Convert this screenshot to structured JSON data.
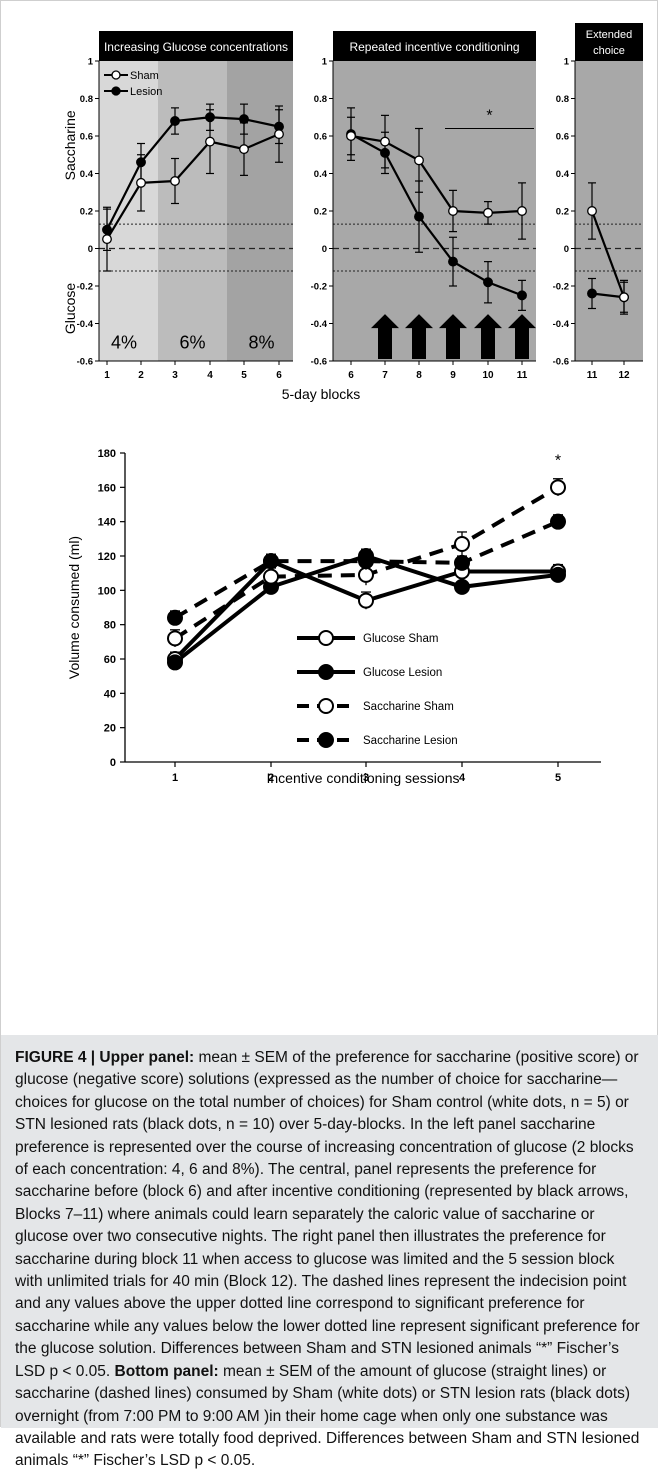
{
  "chart_data": [
    {
      "type": "line",
      "panels": [
        {
          "title": "Increasing Glucose concentrations",
          "x": [
            1,
            2,
            3,
            4,
            5,
            6
          ],
          "bands": [
            {
              "from": 1,
              "to": 2,
              "label": "4%"
            },
            {
              "from": 3,
              "to": 4,
              "label": "6%"
            },
            {
              "from": 5,
              "to": 6,
              "label": "8%"
            }
          ],
          "series": [
            {
              "name": "Sham",
              "marker": "white",
              "values": [
                0.05,
                0.35,
                0.36,
                0.57,
                0.53,
                0.61
              ],
              "sem": [
                0.17,
                0.15,
                0.12,
                0.17,
                0.14,
                0.15
              ]
            },
            {
              "name": "Lesion",
              "marker": "black",
              "values": [
                0.1,
                0.46,
                0.68,
                0.7,
                0.69,
                0.65
              ],
              "sem": [
                0.11,
                0.1,
                0.07,
                0.07,
                0.08,
                0.09
              ]
            }
          ]
        },
        {
          "title": "Repeated incentive conditioning",
          "x": [
            6,
            7,
            8,
            9,
            10,
            11
          ],
          "significance": "*",
          "arrows_at": [
            7,
            8,
            9,
            10,
            11
          ],
          "series": [
            {
              "name": "Sham",
              "marker": "white",
              "values": [
                0.6,
                0.57,
                0.47,
                0.2,
                0.19,
                0.2
              ],
              "sem": [
                0.1,
                0.14,
                0.17,
                0.11,
                0.06,
                0.15
              ]
            },
            {
              "name": "Lesion",
              "marker": "black",
              "values": [
                0.61,
                0.51,
                0.17,
                -0.07,
                -0.18,
                -0.25
              ],
              "sem": [
                0.14,
                0.11,
                0.19,
                0.13,
                0.11,
                0.08
              ]
            }
          ]
        },
        {
          "title": "Extended choice",
          "x": [
            11,
            12
          ],
          "series": [
            {
              "name": "Sham",
              "marker": "white",
              "values": [
                0.2,
                -0.26
              ],
              "sem": [
                0.15,
                0.08
              ]
            },
            {
              "name": "Lesion",
              "marker": "black",
              "values": [
                -0.24,
                -0.26
              ],
              "sem": [
                0.08,
                0.09
              ]
            }
          ]
        }
      ],
      "ylim": [
        -0.6,
        1
      ],
      "yticks": [
        "1",
        "0.8",
        "0.6",
        "0.4",
        "0.2",
        "0",
        "-0.2",
        "-0.4",
        "-0.6"
      ],
      "y_label_top": "Saccharine",
      "y_label_bottom": "Glucose",
      "xlabel": "5-day blocks",
      "reference_lines": {
        "indecision": 0,
        "upper_dotted": 0.13,
        "lower_dotted": -0.12
      },
      "legend": [
        "Sham",
        "Lesion"
      ]
    },
    {
      "type": "line",
      "categories": [
        "1",
        "2",
        "3",
        "4",
        "5"
      ],
      "ylabel": "Volume consumed (ml)",
      "xlabel": "Incentive conditioning sessions",
      "ylim": [
        0,
        180
      ],
      "yticks": [
        "0",
        "20",
        "40",
        "60",
        "80",
        "100",
        "120",
        "140",
        "160",
        "180"
      ],
      "significance": "*",
      "series": [
        {
          "name": "Glucose Sham",
          "line": "solid",
          "marker": "white",
          "values": [
            60,
            117,
            94,
            111,
            111
          ],
          "sem": [
            4,
            4,
            5,
            4,
            4
          ]
        },
        {
          "name": "Glucose Lesion",
          "line": "solid",
          "marker": "black",
          "values": [
            58,
            102,
            120,
            102,
            109
          ],
          "sem": [
            3,
            4,
            4,
            3,
            3
          ]
        },
        {
          "name": "Saccharine Sham",
          "line": "dashed",
          "marker": "white",
          "values": [
            72,
            108,
            109,
            127,
            160
          ],
          "sem": [
            5,
            5,
            6,
            7,
            5
          ]
        },
        {
          "name": "Saccharine Lesion",
          "line": "dashed",
          "marker": "black",
          "values": [
            84,
            117,
            117,
            116,
            140
          ],
          "sem": [
            4,
            4,
            5,
            4,
            4
          ]
        }
      ]
    }
  ],
  "caption": {
    "label": "FIGURE 4 | Upper panel:",
    "upper_text": " mean ± SEM of the preference for saccharine (positive score) or glucose (negative score) solutions (expressed as the number of choice for saccharine—choices for glucose on the total number of choices) for Sham control (white dots, n = 5) or STN lesioned rats (black dots, n = 10) over 5-day-blocks. In the left panel saccharine preference is represented over the course of increasing concentration of glucose (2 blocks of each concentration: 4, 6 and 8%). The central, panel represents the preference for saccharine before (block 6) and after incentive conditioning (represented by black arrows, Blocks 7–11) where animals could learn separately the caloric value of saccharine or glucose over two consecutive nights. The right panel then illustrates the preference for saccharine during block 11 when access to glucose was limited and the 5 session block with unlimited trials for 40 min (Block 12). The dashed lines represent the indecision point and any values above the upper dotted line correspond to significant preference for saccharine while any values below the lower dotted line represent significant preference for the glucose solution. Differences between Sham and STN lesioned animals “*” Fischer’s LSD p < 0.05.",
    "bottom_label": "Bottom panel:",
    "bottom_text": " mean ± SEM of the amount of glucose (straight lines) or saccharine (dashed lines) consumed by Sham (white dots) or STN lesion rats (black dots) overnight (from 7:00 PM to 9:00 AM )in their home cage when only one substance was available and rats were totally food deprived. Differences between Sham and STN lesioned animals “*” Fischer’s LSD p < 0.05."
  },
  "colors": {
    "panel_band_1": "#d8d8d8",
    "panel_band_2": "#bcbcbc",
    "panel_band_3": "#a3a3a3",
    "panel_bg": "#a8a8a8",
    "title_bar": "#000000",
    "caption_bg": "#e4e6e8"
  }
}
